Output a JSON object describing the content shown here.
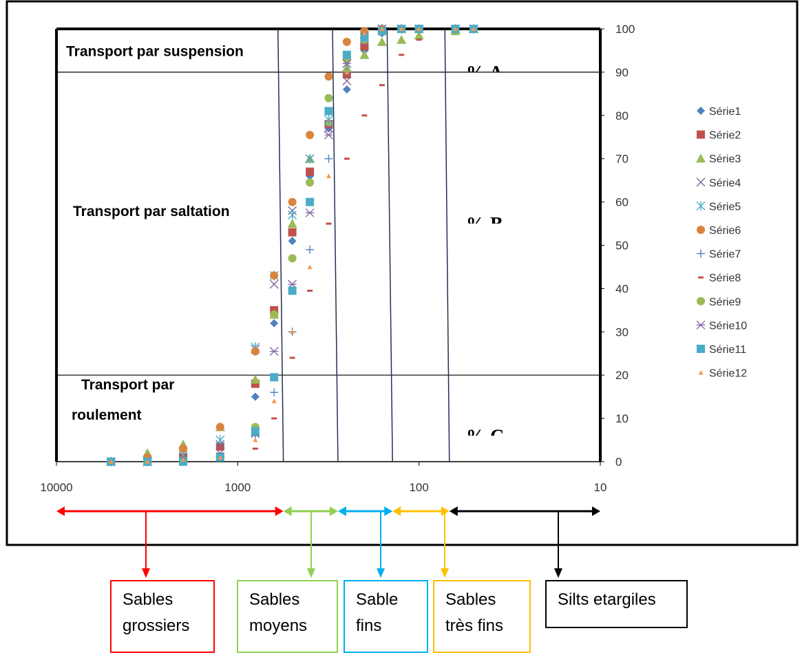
{
  "chart_data": {
    "type": "scatter",
    "x_scale": "log",
    "x_axis_reversed": true,
    "xlim": [
      10000,
      10
    ],
    "ylim": [
      0,
      100
    ],
    "x_ticks": [
      10000,
      1000,
      100,
      10
    ],
    "y_ticks": [
      0,
      10,
      20,
      30,
      40,
      50,
      60,
      70,
      80,
      90,
      100
    ],
    "x_tick_labels": [
      "10000",
      "1000",
      "100",
      "10"
    ],
    "y_tick_labels": [
      "0",
      "10",
      "20",
      "30",
      "40",
      "50",
      "60",
      "70",
      "80",
      "90",
      "100"
    ],
    "legend_position": "right",
    "grid": false,
    "horizontal_lines_y": [
      20,
      90
    ],
    "slanted_lines": [
      {
        "top_x": 600,
        "bottom_x": 560
      },
      {
        "top_x": 300,
        "bottom_x": 280
      },
      {
        "top_x": 150,
        "bottom_x": 140
      },
      {
        "top_x": 72,
        "bottom_x": 68
      }
    ],
    "zone_labels": [
      "Transport par suspension",
      "Transport par saltation",
      "Transport par roulement"
    ],
    "zone_label_values": [
      {
        "label": "Transport par suspension",
        "y": 95
      },
      {
        "label": "Transport par saltation",
        "y": 58
      },
      {
        "label": "Transport par roulement",
        "y": 10
      }
    ],
    "clipped_labels": [
      "%  A",
      "%  B",
      "%  C"
    ],
    "clipped_label_values": [
      {
        "x": 55,
        "y": 90
      },
      {
        "x": 55,
        "y": 55
      },
      {
        "x": 55,
        "y": 6
      }
    ],
    "series": [
      {
        "name": "Série1",
        "color": "#4f81bd",
        "marker": "diamond",
        "points": [
          [
            5000,
            0
          ],
          [
            3150,
            0
          ],
          [
            2000,
            0.5
          ],
          [
            1250,
            1
          ],
          [
            800,
            15
          ],
          [
            630,
            32
          ],
          [
            500,
            51
          ],
          [
            400,
            66
          ],
          [
            315,
            77
          ],
          [
            250,
            86
          ],
          [
            200,
            95
          ],
          [
            160,
            99
          ],
          [
            125,
            100
          ],
          [
            100,
            100
          ],
          [
            63,
            100
          ],
          [
            50,
            100
          ]
        ]
      },
      {
        "name": "Série2",
        "color": "#c0504d",
        "marker": "square",
        "points": [
          [
            5000,
            0
          ],
          [
            3150,
            0.5
          ],
          [
            2000,
            1
          ],
          [
            1250,
            3.5
          ],
          [
            800,
            18
          ],
          [
            630,
            35
          ],
          [
            500,
            53
          ],
          [
            400,
            67
          ],
          [
            315,
            78
          ],
          [
            250,
            89.5
          ],
          [
            200,
            96
          ],
          [
            160,
            99.5
          ],
          [
            125,
            100
          ],
          [
            100,
            100
          ],
          [
            63,
            100
          ],
          [
            50,
            100
          ]
        ]
      },
      {
        "name": "Série3",
        "color": "#9bbb59",
        "marker": "triangle",
        "points": [
          [
            5000,
            0
          ],
          [
            3150,
            2
          ],
          [
            2000,
            4
          ],
          [
            1250,
            8
          ],
          [
            800,
            19
          ],
          [
            630,
            34
          ],
          [
            500,
            55
          ],
          [
            400,
            70
          ],
          [
            315,
            78.5
          ],
          [
            250,
            91
          ],
          [
            200,
            94
          ],
          [
            160,
            97
          ],
          [
            125,
            97.5
          ],
          [
            100,
            98.5
          ],
          [
            63,
            99.5
          ],
          [
            50,
            100
          ]
        ]
      },
      {
        "name": "Série4",
        "color": "#8064a2",
        "marker": "x",
        "points": [
          [
            5000,
            0
          ],
          [
            3150,
            0
          ],
          [
            2000,
            1
          ],
          [
            1250,
            4
          ],
          [
            800,
            26
          ],
          [
            630,
            41
          ],
          [
            500,
            58
          ],
          [
            400,
            70
          ],
          [
            315,
            77
          ],
          [
            250,
            88
          ],
          [
            200,
            97
          ],
          [
            160,
            100
          ],
          [
            125,
            100
          ],
          [
            100,
            100
          ],
          [
            63,
            100
          ],
          [
            50,
            100
          ]
        ]
      },
      {
        "name": "Série5",
        "color": "#4bacc6",
        "marker": "star",
        "points": [
          [
            5000,
            0
          ],
          [
            3150,
            0
          ],
          [
            2000,
            1.5
          ],
          [
            1250,
            5
          ],
          [
            800,
            26.5
          ],
          [
            630,
            43
          ],
          [
            500,
            57
          ],
          [
            400,
            70
          ],
          [
            315,
            79
          ],
          [
            250,
            92
          ],
          [
            200,
            99
          ],
          [
            160,
            100
          ],
          [
            125,
            100
          ],
          [
            100,
            100
          ],
          [
            63,
            100
          ],
          [
            50,
            100
          ]
        ]
      },
      {
        "name": "Série6",
        "color": "#d9843d",
        "marker": "circle",
        "points": [
          [
            5000,
            0
          ],
          [
            3150,
            1
          ],
          [
            2000,
            3
          ],
          [
            1250,
            8
          ],
          [
            800,
            25.5
          ],
          [
            630,
            43
          ],
          [
            500,
            60
          ],
          [
            400,
            75.5
          ],
          [
            315,
            89
          ],
          [
            250,
            97
          ],
          [
            200,
            99.5
          ],
          [
            160,
            100
          ],
          [
            125,
            100
          ],
          [
            100,
            100
          ],
          [
            63,
            100
          ],
          [
            50,
            100
          ]
        ]
      },
      {
        "name": "Série7",
        "color": "#4f81bd",
        "marker": "plus",
        "points": [
          [
            5000,
            0
          ],
          [
            3150,
            0
          ],
          [
            2000,
            0.5
          ],
          [
            1250,
            1
          ],
          [
            800,
            6
          ],
          [
            630,
            16
          ],
          [
            500,
            30
          ],
          [
            400,
            49
          ],
          [
            315,
            70
          ],
          [
            250,
            90
          ],
          [
            200,
            99
          ],
          [
            160,
            100
          ],
          [
            125,
            100
          ],
          [
            100,
            100
          ],
          [
            63,
            100
          ],
          [
            50,
            100
          ]
        ]
      },
      {
        "name": "Série8",
        "color": "#c0504d",
        "marker": "dash",
        "points": [
          [
            5000,
            0
          ],
          [
            3150,
            0
          ],
          [
            2000,
            0.5
          ],
          [
            1250,
            0.5
          ],
          [
            800,
            3
          ],
          [
            630,
            10
          ],
          [
            500,
            24
          ],
          [
            400,
            39.5
          ],
          [
            315,
            55
          ],
          [
            250,
            70
          ],
          [
            200,
            80
          ],
          [
            160,
            87
          ],
          [
            125,
            94
          ],
          [
            100,
            97.5
          ],
          [
            63,
            100
          ],
          [
            50,
            100
          ]
        ]
      },
      {
        "name": "Série9",
        "color": "#9bbb59",
        "marker": "circle",
        "points": [
          [
            5000,
            0
          ],
          [
            3150,
            0
          ],
          [
            2000,
            0.5
          ],
          [
            1250,
            1
          ],
          [
            800,
            8
          ],
          [
            630,
            34
          ],
          [
            500,
            47
          ],
          [
            400,
            64.5
          ],
          [
            315,
            84
          ],
          [
            250,
            93
          ],
          [
            200,
            97.5
          ],
          [
            160,
            99.5
          ],
          [
            125,
            100
          ],
          [
            100,
            100
          ],
          [
            63,
            100
          ],
          [
            50,
            100
          ]
        ]
      },
      {
        "name": "Série10",
        "color": "#8064a2",
        "marker": "asterisk",
        "points": [
          [
            5000,
            0
          ],
          [
            3150,
            0
          ],
          [
            2000,
            1
          ],
          [
            1250,
            2
          ],
          [
            800,
            6.5
          ],
          [
            630,
            25.5
          ],
          [
            500,
            41
          ],
          [
            400,
            57.5
          ],
          [
            315,
            75.5
          ],
          [
            250,
            92
          ],
          [
            200,
            98
          ],
          [
            160,
            100
          ],
          [
            125,
            100
          ],
          [
            100,
            100
          ],
          [
            63,
            100
          ],
          [
            50,
            100
          ]
        ]
      },
      {
        "name": "Série11",
        "color": "#4bacc6",
        "marker": "square",
        "points": [
          [
            5000,
            0
          ],
          [
            3150,
            0
          ],
          [
            2000,
            0
          ],
          [
            1250,
            1
          ],
          [
            800,
            7
          ],
          [
            630,
            19.5
          ],
          [
            500,
            39.5
          ],
          [
            400,
            60
          ],
          [
            315,
            81
          ],
          [
            250,
            94
          ],
          [
            200,
            98
          ],
          [
            160,
            99.5
          ],
          [
            125,
            100
          ],
          [
            100,
            100
          ],
          [
            63,
            100
          ],
          [
            50,
            100
          ]
        ]
      },
      {
        "name": "Série12",
        "color": "#f79646",
        "marker": "smalltri",
        "points": [
          [
            5000,
            0
          ],
          [
            3150,
            0
          ],
          [
            2000,
            0.5
          ],
          [
            1250,
            1
          ],
          [
            800,
            5
          ],
          [
            630,
            14
          ],
          [
            500,
            30
          ],
          [
            400,
            45
          ],
          [
            315,
            66
          ],
          [
            250,
            90
          ],
          [
            200,
            99
          ],
          [
            160,
            100
          ],
          [
            125,
            100
          ],
          [
            100,
            100
          ],
          [
            63,
            100
          ],
          [
            50,
            100
          ]
        ]
      }
    ],
    "class_arrows": [
      {
        "from": 10000,
        "to": 560,
        "color": "#ff0000",
        "label_lines": [
          "Sables",
          "grossiers"
        ]
      },
      {
        "from": 560,
        "to": 280,
        "color": "#92d050",
        "label_lines": [
          "Sables",
          "moyens"
        ]
      },
      {
        "from": 280,
        "to": 140,
        "color": "#00b0f0",
        "label_lines": [
          "Sable",
          "fins"
        ]
      },
      {
        "from": 140,
        "to": 68,
        "color": "#ffc000",
        "label_lines": [
          "Sables",
          "très fins"
        ]
      },
      {
        "from": 68,
        "to": 10,
        "color": "#000000",
        "label_lines": [
          "Silts etargiles"
        ]
      }
    ]
  }
}
